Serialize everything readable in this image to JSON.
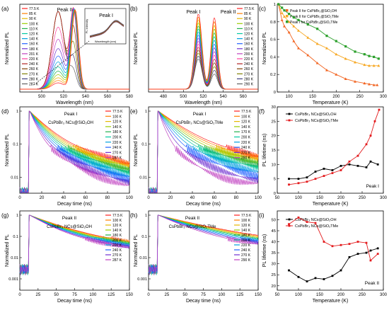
{
  "figure": {
    "panels": [
      {
        "id": "a",
        "letter": "(a)",
        "xlabel": "Wavelength (nm)",
        "ylabel": "Normalized PL",
        "xlim": [
          480,
          580
        ],
        "xticks": [
          500,
          520,
          540,
          560,
          580
        ]
      },
      {
        "id": "b",
        "letter": "(b)",
        "xlabel": "Wavelength (nm)",
        "ylabel": "Normalized PL",
        "xlim": [
          465,
          575
        ],
        "xticks": [
          480,
          500,
          520,
          540,
          560
        ]
      },
      {
        "id": "c",
        "letter": "(c)",
        "xlabel": "Temperature (K)",
        "ylabel": "Normalized PL",
        "xlim": [
          75,
          300
        ],
        "ylim": [
          0,
          1.0
        ],
        "xticks": [
          100,
          150,
          200,
          250,
          300
        ],
        "yticks": [
          0,
          0.2,
          0.4,
          0.6,
          0.8,
          1.0
        ]
      },
      {
        "id": "d",
        "letter": "(d)",
        "xlabel": "Decay time (ns)",
        "ylabel": "Normalized PL",
        "xlim": [
          0,
          100
        ],
        "xticks": [
          0,
          20,
          40,
          60,
          80,
          100
        ],
        "yticks": [
          "1",
          "0.1",
          "0.01"
        ]
      },
      {
        "id": "e",
        "letter": "(e)",
        "xlabel": "Decay time (ns)",
        "ylabel": "Normalized PL",
        "xlim": [
          0,
          100
        ],
        "xticks": [
          0,
          20,
          40,
          60,
          80,
          100
        ],
        "yticks": [
          "1",
          "0.1",
          "0.01"
        ]
      },
      {
        "id": "f",
        "letter": "(f)",
        "xlabel": "Temperature (K)",
        "ylabel": "PL lifetime (ns)",
        "xlim": [
          50,
          300
        ],
        "ylim": [
          0,
          30
        ],
        "xticks": [
          50,
          100,
          150,
          200,
          250,
          300
        ],
        "yticks": [
          0,
          5,
          10,
          15,
          20,
          25,
          30
        ]
      },
      {
        "id": "g",
        "letter": "(g)",
        "xlabel": "Decay time (ns)",
        "ylabel": "Normalized PL",
        "xlim": [
          0,
          150
        ],
        "xticks": [
          0,
          25,
          50,
          75,
          100,
          125,
          150
        ],
        "yticks": [
          "1",
          "0.1",
          "0.01",
          "0.001"
        ]
      },
      {
        "id": "h",
        "letter": "(h)",
        "xlabel": "Decay time (ns)",
        "ylabel": "Normalized PL",
        "xlim": [
          0,
          150
        ],
        "xticks": [
          0,
          25,
          50,
          75,
          100,
          125,
          150
        ],
        "yticks": [
          "1",
          "0.1",
          "0.01",
          "0.001"
        ]
      },
      {
        "id": "i",
        "letter": "(i)",
        "xlabel": "Temperature (K)",
        "ylabel": "PL lifetime (ns)",
        "xlim": [
          50,
          300
        ],
        "ylim": [
          18,
          54
        ],
        "xticks": [
          50,
          100,
          150,
          200,
          250,
          300
        ],
        "yticks": [
          20,
          25,
          30,
          35,
          40,
          45,
          50
        ]
      }
    ],
    "text": {
      "a_peak2": "Peak II",
      "a_peak1": "Peak I",
      "a_inset_ylabel": "PL intensity",
      "a_inset_xlabel": "Wavelength (nm)",
      "b_peak1": "Peak I",
      "b_peak2": "Peak II",
      "d_title": "Peak I",
      "d_sample": "CsPbBr₃ NCs@SiO₂OH",
      "e_title": "Peak I",
      "e_sample": "CsPbBr₃ NCs@SiO₂TMe",
      "g_title": "Peak II",
      "g_sample": "CsPbBr₃ NCs@SiO₂OH",
      "h_title": "Peak II",
      "h_sample": "CsPbBr₃ NCs@SiO₂TMe",
      "f_tag": "Peak I",
      "i_tag": "Peak II"
    },
    "legends": {
      "a": [
        "77.5 K",
        "85 K",
        "90 K",
        "100 K",
        "110 K",
        "120 K",
        "140 K",
        "160 K",
        "180 K",
        "201 K",
        "220 K",
        "240 K",
        "260 K",
        "270 K",
        "280 K",
        "287 K"
      ],
      "b": [
        "77.5 K",
        "85 K",
        "90 K",
        "100 K",
        "110 K",
        "120 K",
        "140 K",
        "160 K",
        "180 K",
        "200 K",
        "220 K",
        "240 K",
        "260 K",
        "270 K",
        "280 K",
        "290 K"
      ],
      "d": [
        "77.5 K",
        "100 K",
        "120 K",
        "140 K",
        "180 K",
        "200 K",
        "220 K",
        "240 K",
        "270 K",
        "287 K"
      ],
      "e": [
        "77.5 K",
        "100 K",
        "120 K",
        "140 K",
        "170 K",
        "200 K",
        "220 K",
        "240 K",
        "270 K",
        "290 K"
      ],
      "g": [
        "77.5 K",
        "100 K",
        "120 K",
        "140 K",
        "180 K",
        "200 K",
        "220 K",
        "240 K",
        "270 K",
        "287 K"
      ],
      "h": [
        "77.5 K",
        "100 K",
        "120 K",
        "140 K",
        "180 K",
        "200 K",
        "220 K",
        "240 K",
        "270 K",
        "290 K"
      ]
    },
    "colors": [
      "#ff2020",
      "#ff7f00",
      "#e6b800",
      "#9acd00",
      "#22b14c",
      "#00c8a0",
      "#00a0e0",
      "#2060ff",
      "#7030d0",
      "#c040c0",
      "#ff40a0",
      "#b02020",
      "#804000",
      "#808000",
      "#404080",
      "#606060"
    ]
  },
  "chart_data": [
    {
      "panel": "a",
      "type": "line",
      "xlabel": "Wavelength (nm)",
      "ylabel": "Normalized PL",
      "note_peaks": [
        {
          "name": "Peak II",
          "x_nm": 530
        },
        {
          "name": "Peak I",
          "x_nm": 515
        }
      ],
      "series_names": [
        "77.5 K",
        "85 K",
        "90 K",
        "100 K",
        "110 K",
        "120 K",
        "140 K",
        "160 K",
        "180 K",
        "201 K",
        "220 K",
        "240 K",
        "260 K",
        "270 K",
        "280 K",
        "287 K"
      ],
      "peak2_center_nm": 530.5,
      "peak1_center_nm": 515
    },
    {
      "panel": "b",
      "type": "line",
      "xlabel": "Wavelength (nm)",
      "ylabel": "Normalized PL",
      "series_names": [
        "77.5 K",
        "85 K",
        "90 K",
        "100 K",
        "110 K",
        "120 K",
        "140 K",
        "160 K",
        "180 K",
        "200 K",
        "220 K",
        "240 K",
        "260 K",
        "270 K",
        "280 K",
        "290 K"
      ],
      "peak1_center_nm": 515,
      "peak2_center_nm": 531
    },
    {
      "panel": "c",
      "type": "scatter",
      "xlabel": "Temperature (K)",
      "ylabel": "Normalized PL",
      "ylim": [
        0,
        1.0
      ],
      "series": [
        {
          "name": "Peak II for CsPbBr₃@SiO₂OH",
          "color": "#f26522",
          "x": [
            77.5,
            85,
            90,
            100,
            110,
            120,
            140,
            160,
            180,
            200,
            220,
            240,
            260,
            270,
            280,
            287
          ],
          "y": [
            1.0,
            0.82,
            0.75,
            0.68,
            0.58,
            0.5,
            0.42,
            0.33,
            0.25,
            0.2,
            0.15,
            0.12,
            0.1,
            0.09,
            0.08,
            0.08
          ]
        },
        {
          "name": "Peak II for CsPbBr₃@SiO₂TMe",
          "color": "#f7a823",
          "x": [
            77.5,
            85,
            90,
            100,
            110,
            120,
            140,
            160,
            180,
            200,
            220,
            240,
            260,
            270,
            280,
            290
          ],
          "y": [
            1.0,
            0.9,
            0.86,
            0.8,
            0.75,
            0.7,
            0.62,
            0.55,
            0.5,
            0.43,
            0.38,
            0.34,
            0.31,
            0.3,
            0.3,
            0.3
          ]
        },
        {
          "name": "Peak I for CsPbBr₃@SiO₂TMe",
          "color": "#2ca02c",
          "x": [
            77.5,
            85,
            90,
            100,
            110,
            120,
            140,
            160,
            180,
            200,
            220,
            240,
            260,
            270,
            280,
            290
          ],
          "y": [
            1.0,
            0.96,
            0.93,
            0.89,
            0.85,
            0.82,
            0.77,
            0.72,
            0.64,
            0.58,
            0.52,
            0.46,
            0.43,
            0.41,
            0.4,
            0.38
          ]
        }
      ]
    },
    {
      "panel": "f",
      "type": "line",
      "xlabel": "Temperature (K)",
      "ylabel": "PL lifetime (ns)",
      "ylim": [
        0,
        30
      ],
      "series": [
        {
          "name": "CsPbBr₃ NCs@SiO₂OH",
          "color": "#000000",
          "x": [
            77.5,
            100,
            120,
            140,
            160,
            180,
            200,
            220,
            240,
            260,
            270,
            287
          ],
          "y": [
            5.0,
            5.0,
            5.5,
            7.5,
            8.5,
            8.0,
            9.5,
            10.0,
            9.5,
            9.0,
            11.0,
            10.0
          ]
        },
        {
          "name": "CsPbBr₃ NCs@SiO₂TMe",
          "color": "#e31a1c",
          "x": [
            77.5,
            100,
            120,
            140,
            160,
            180,
            200,
            220,
            240,
            260,
            270,
            280,
            290
          ],
          "y": [
            3.0,
            3.5,
            4.0,
            5.0,
            6.0,
            7.0,
            8.0,
            11.0,
            13.0,
            17.0,
            20.0,
            25.0,
            29.0
          ]
        }
      ]
    },
    {
      "panel": "i",
      "type": "line",
      "xlabel": "Temperature (K)",
      "ylabel": "PL lifetime (ns)",
      "ylim": [
        18,
        54
      ],
      "series": [
        {
          "name": "CsPbBr₃ NCs@SiO₂OH",
          "color": "#000000",
          "x": [
            77.5,
            100,
            120,
            140,
            160,
            180,
            200,
            220,
            240,
            260,
            270,
            287
          ],
          "y": [
            27,
            24,
            22,
            23.5,
            23,
            24.5,
            27,
            33,
            34.5,
            35,
            36,
            37
          ]
        },
        {
          "name": "CsPbBr₃ NCs@SiO₂TMe",
          "color": "#e31a1c",
          "x": [
            77.5,
            100,
            120,
            140,
            160,
            180,
            200,
            220,
            240,
            260,
            270,
            287
          ],
          "y": [
            48,
            51,
            49,
            48.5,
            40,
            38,
            38.5,
            39,
            40,
            39.5,
            31.5,
            34.5
          ]
        }
      ]
    },
    {
      "panel": "d",
      "type": "line",
      "xlabel": "Decay time (ns)",
      "ylabel": "Normalized PL",
      "yscale": "log",
      "series_names": [
        "77.5 K",
        "100 K",
        "120 K",
        "140 K",
        "180 K",
        "200 K",
        "220 K",
        "240 K",
        "270 K",
        "287 K"
      ]
    },
    {
      "panel": "e",
      "type": "line",
      "xlabel": "Decay time (ns)",
      "ylabel": "Normalized PL",
      "yscale": "log",
      "series_names": [
        "77.5 K",
        "100 K",
        "120 K",
        "140 K",
        "170 K",
        "200 K",
        "220 K",
        "240 K",
        "270 K",
        "290 K"
      ]
    },
    {
      "panel": "g",
      "type": "line",
      "xlabel": "Decay time (ns)",
      "ylabel": "Normalized PL",
      "yscale": "log",
      "series_names": [
        "77.5 K",
        "100 K",
        "120 K",
        "140 K",
        "180 K",
        "200 K",
        "220 K",
        "240 K",
        "270 K",
        "287 K"
      ]
    },
    {
      "panel": "h",
      "type": "line",
      "xlabel": "Decay time (ns)",
      "ylabel": "Normalized PL",
      "yscale": "log",
      "series_names": [
        "77.5 K",
        "100 K",
        "120 K",
        "140 K",
        "180 K",
        "200 K",
        "220 K",
        "240 K",
        "270 K",
        "290 K"
      ]
    }
  ]
}
